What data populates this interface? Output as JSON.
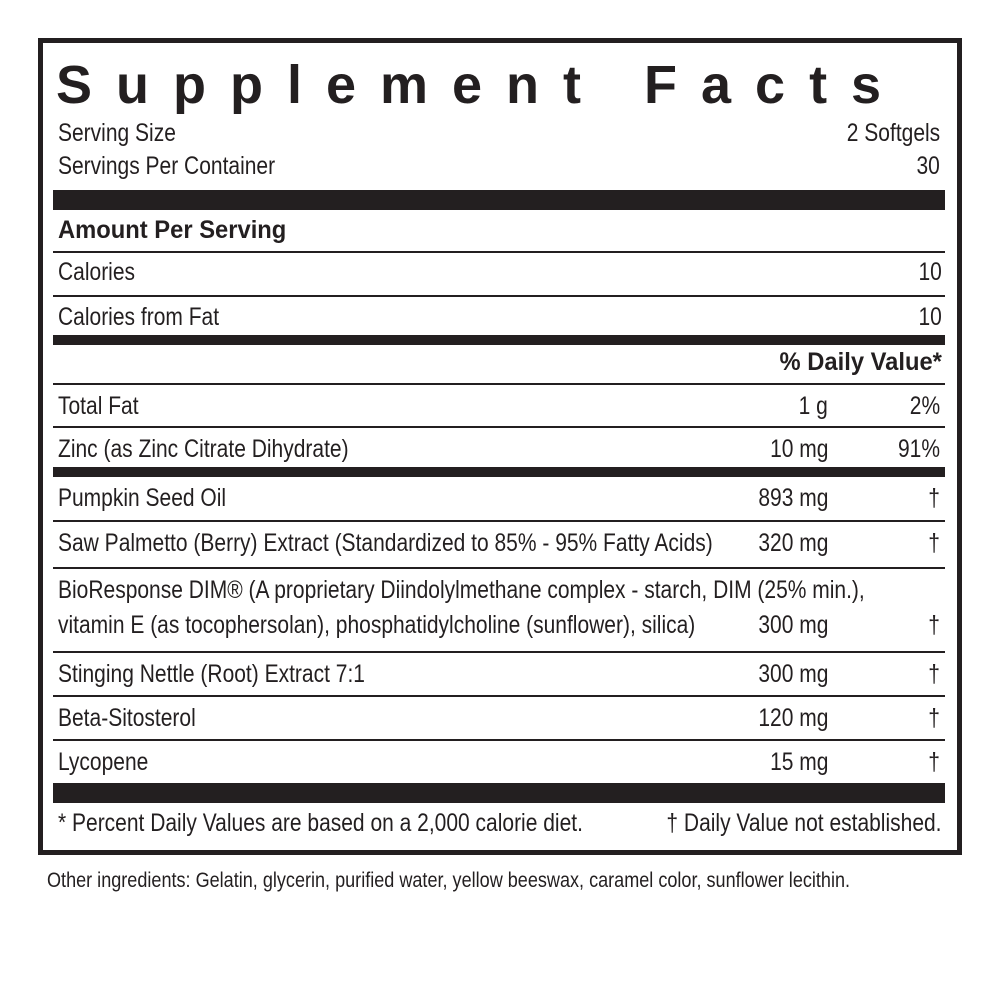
{
  "title": "Supplement Facts",
  "serving": {
    "size_label": "Serving Size",
    "size_value": "2 Softgels",
    "per_container_label": "Servings Per Container",
    "per_container_value": "30"
  },
  "amount_header": "Amount Per Serving",
  "calories": [
    {
      "name": "Calories",
      "value": "10"
    },
    {
      "name": "Calories from Fat",
      "value": "10"
    }
  ],
  "dv_header": "% Daily Value*",
  "rows": [
    {
      "name": "Total Fat",
      "amount": "1 g",
      "dv": "2%"
    },
    {
      "name": "Zinc (as Zinc Citrate Dihydrate)",
      "amount": "10 mg",
      "dv": "91%"
    },
    {
      "name": "Pumpkin Seed Oil",
      "amount": "893 mg",
      "dv": "†"
    },
    {
      "name": "Saw Palmetto (Berry) Extract (Standardized to 85% - 95% Fatty Acids)",
      "amount": "320 mg",
      "dv": "†"
    },
    {
      "name": [
        "BioResponse DIM® (A proprietary Diindolylmethane complex - starch, DIM (25% min.),",
        "vitamin E (as tocophersolan), phosphatidylcholine (sunflower), silica)"
      ],
      "amount": "300 mg",
      "dv": "†"
    },
    {
      "name": "Stinging Nettle (Root) Extract 7:1",
      "amount": "300 mg",
      "dv": "†"
    },
    {
      "name": "Beta-Sitosterol",
      "amount": "120 mg",
      "dv": "†"
    },
    {
      "name": "Lycopene",
      "amount": "15 mg",
      "dv": "†"
    }
  ],
  "footnote": {
    "left": "* Percent Daily Values are based on a 2,000 calorie diet.",
    "right": "† Daily Value not established."
  },
  "other_ingredients": "Other ingredients: Gelatin, glycerin, purified water, yellow beeswax, caramel color, sunflower lecithin."
}
